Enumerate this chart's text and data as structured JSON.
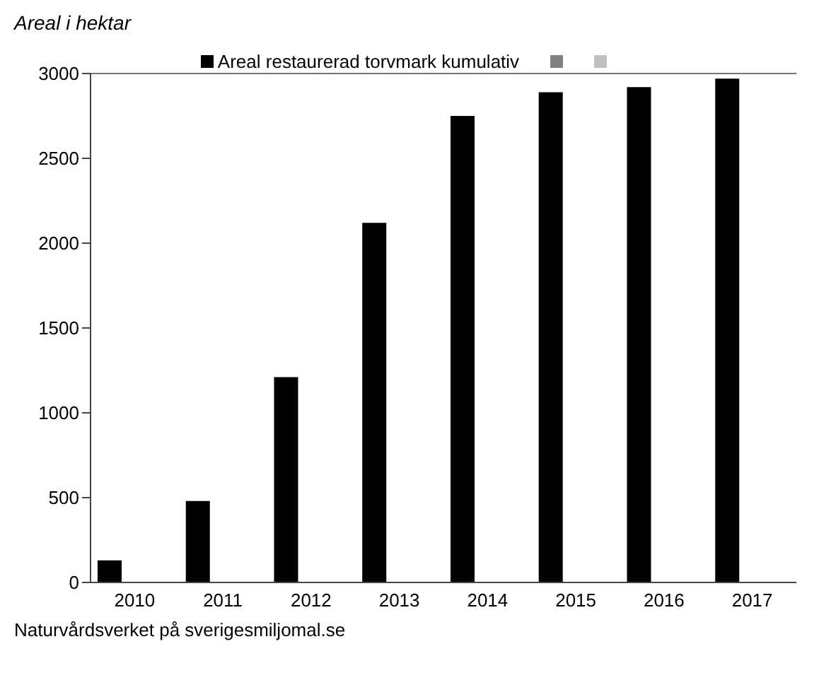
{
  "chart_data": {
    "type": "bar",
    "ylabel": "Areal i hektar",
    "categories": [
      "2010",
      "2011",
      "2012",
      "2013",
      "2014",
      "2015",
      "2016",
      "2017"
    ],
    "series": [
      {
        "name": "Areal restaurerad torvmark kumulativ",
        "color": "#000000",
        "values": [
          130,
          480,
          1210,
          2120,
          2750,
          2890,
          2920,
          2970
        ]
      },
      {
        "color": "#808080",
        "values": [
          null,
          null,
          null,
          null,
          null,
          null,
          null,
          null
        ]
      },
      {
        "color": "#c0c0c0",
        "values": [
          null,
          null,
          null,
          null,
          null,
          null,
          null,
          null
        ]
      }
    ],
    "ylim": [
      0,
      3000
    ],
    "yticks": [
      0,
      500,
      1000,
      1500,
      2000,
      2500,
      3000
    ],
    "grid": false,
    "legend": "top",
    "annotations": [
      "Naturvårdsverket på sverigesmiljomal.se"
    ]
  }
}
